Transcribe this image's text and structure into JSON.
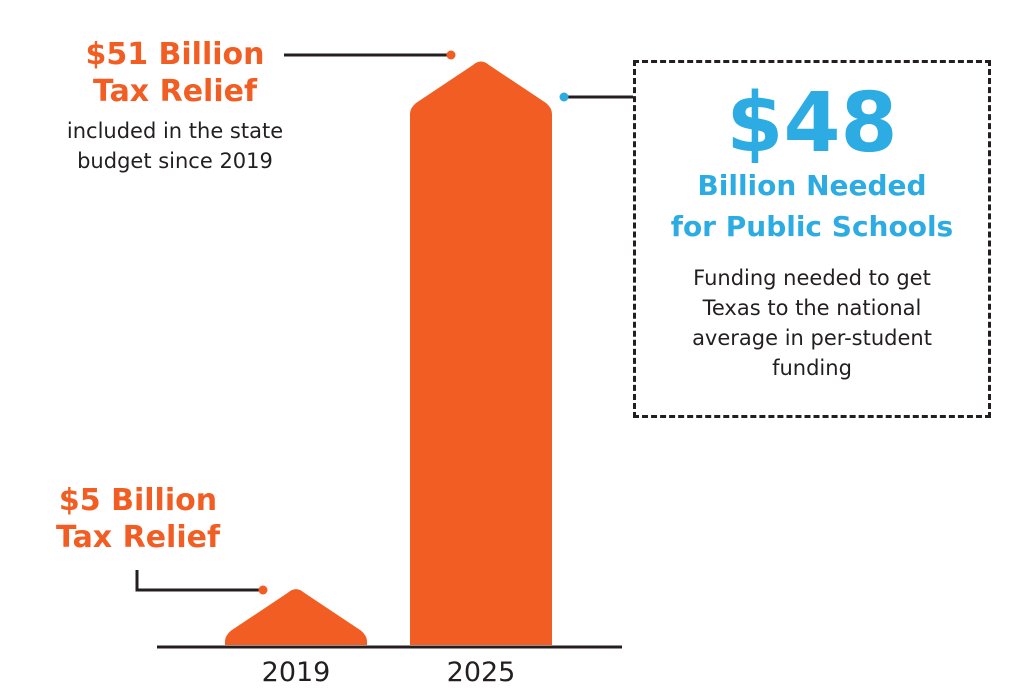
{
  "colors": {
    "tax_relief": "#f15d22",
    "schools": "#2cace2",
    "text": "#231f20"
  },
  "annotations": {
    "tax_2025": {
      "title_line1": "$51 Billion",
      "title_line2": "Tax Relief",
      "note_line1": "included in the state",
      "note_line2": "budget since 2019"
    },
    "tax_2019": {
      "title_line1": "$5 Billion",
      "title_line2": "Tax Relief"
    },
    "schools": {
      "amount": "$48",
      "title_line1": "Billion Needed",
      "title_line2": "for Public Schools",
      "note_lines": [
        "Funding needed to get",
        "Texas to the national",
        "average in per-student",
        "funding"
      ]
    }
  },
  "chart_data": {
    "type": "bar",
    "categories": [
      "2019",
      "2025"
    ],
    "values": [
      5,
      51
    ],
    "ylim": [
      0,
      51
    ],
    "title": "",
    "xlabel": "",
    "ylabel": "",
    "grid": false,
    "legend": "none"
  }
}
